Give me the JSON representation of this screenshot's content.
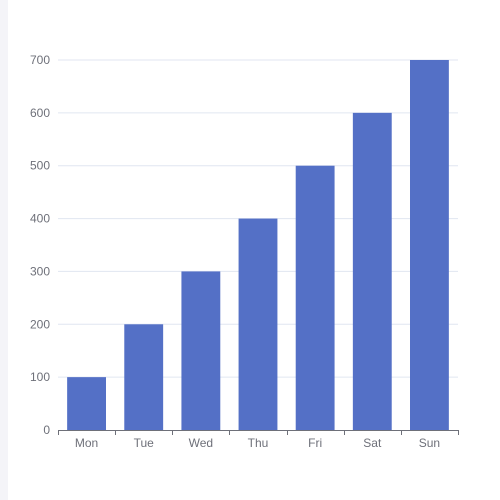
{
  "colors": {
    "bar": "#5470c6",
    "grid": "#e0e6f1",
    "axis": "#6e7079",
    "panel": "#ffffff",
    "page": "#f4f4f8"
  },
  "chart_data": {
    "type": "bar",
    "categories": [
      "Mon",
      "Tue",
      "Wed",
      "Thu",
      "Fri",
      "Sat",
      "Sun"
    ],
    "values": [
      100,
      200,
      300,
      400,
      500,
      600,
      700
    ],
    "title": "",
    "xlabel": "",
    "ylabel": "",
    "ylim": [
      0,
      700
    ],
    "yticks": [
      0,
      100,
      200,
      300,
      400,
      500,
      600,
      700
    ],
    "grid": true,
    "legend": "none"
  }
}
